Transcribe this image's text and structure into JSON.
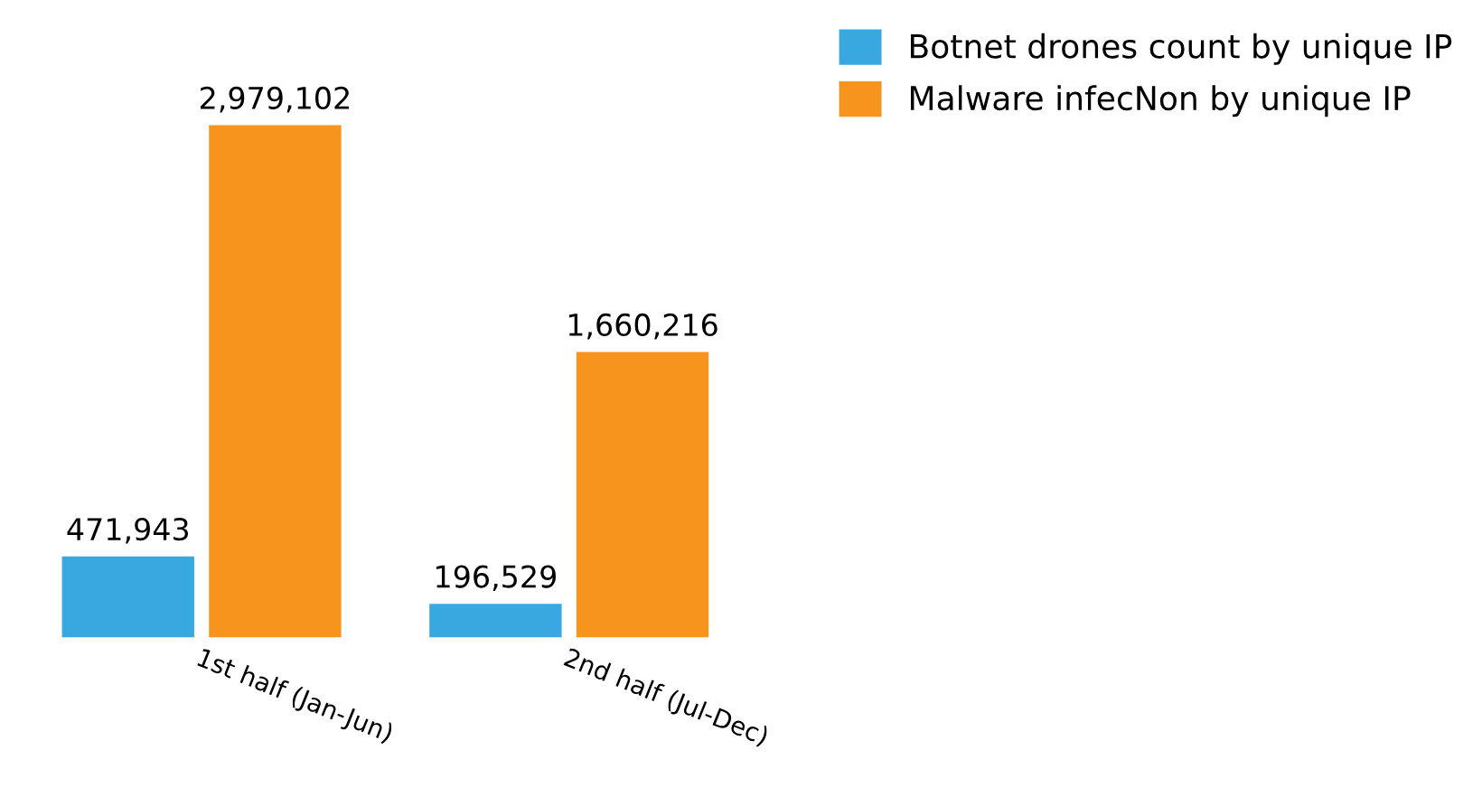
{
  "chart_data": {
    "type": "bar",
    "categories": [
      "1st half (Jan-Jun)",
      "2nd half (Jul-Dec)"
    ],
    "series": [
      {
        "name": "Botnet drones count by unique IP",
        "color": "#3aa8e0",
        "values": [
          471943,
          196529
        ],
        "value_labels": [
          "471,943",
          "196,529"
        ]
      },
      {
        "name": "Malware infecNon by unique IP",
        "color": "#f7941d",
        "values": [
          2979102,
          1660216
        ],
        "value_labels": [
          "2,979,102",
          "1,660,216"
        ]
      }
    ],
    "legend": "top right"
  }
}
